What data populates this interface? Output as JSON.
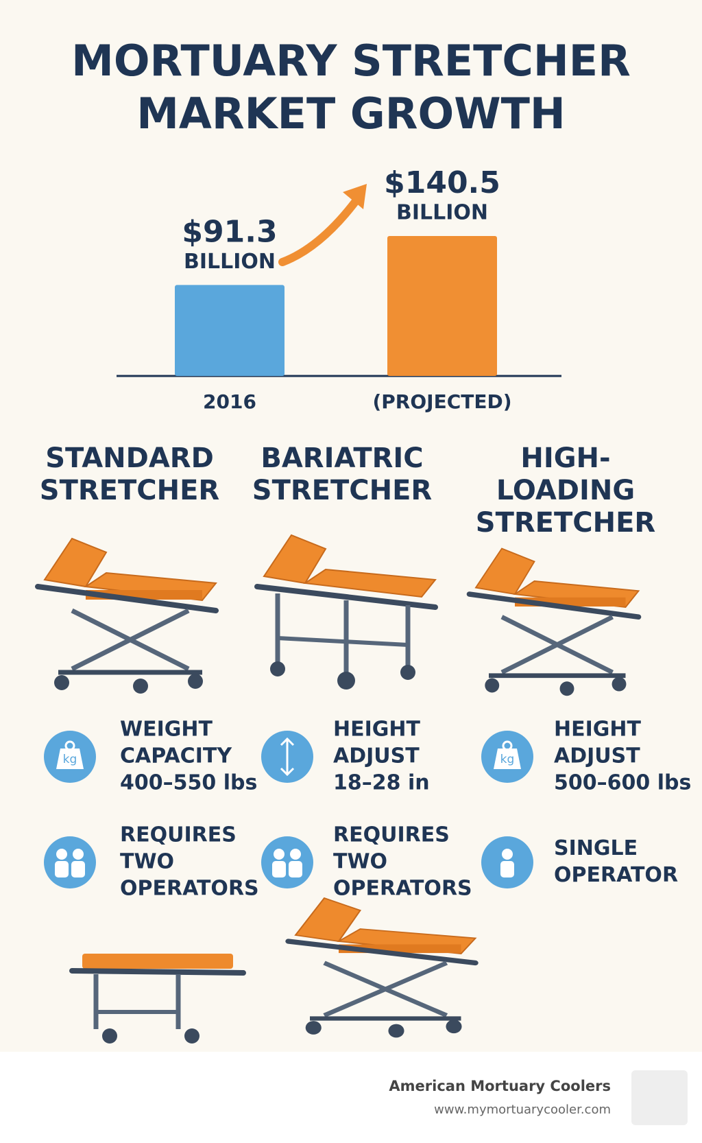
{
  "chart_data": {
    "type": "bar",
    "title_lines": [
      "MORTUARY STRETCHER",
      "MARKET GROWTH"
    ],
    "categories": [
      "2016",
      "(PROJECTED)"
    ],
    "values": [
      91.3,
      140.5
    ],
    "value_labels": [
      "$91.3",
      "$140.5"
    ],
    "unit_label": "BILLION",
    "colors": [
      "#5aa7dc",
      "#f08f33"
    ]
  },
  "stretchers": [
    {
      "name_lines": [
        "STANDARD",
        "STRETCHER"
      ],
      "features": [
        {
          "icon": "kg",
          "lines": [
            "WEIGHT",
            "CAPACITY",
            "400–550 lbs"
          ]
        },
        {
          "icon": "two-people",
          "lines": [
            "REQUIRES",
            "TWO",
            "OPERATORS"
          ]
        }
      ]
    },
    {
      "name_lines": [
        "BARIATRIC",
        "STRETCHER"
      ],
      "features": [
        {
          "icon": "arrows",
          "lines": [
            "HEIGHT",
            "ADJUST",
            "18–28 in"
          ]
        },
        {
          "icon": "two-people",
          "lines": [
            "REQUIRES",
            "TWO",
            "OPERATORS"
          ]
        }
      ]
    },
    {
      "name_lines": [
        "HIGH-",
        "LOADING",
        "STRETCHER"
      ],
      "features": [
        {
          "icon": "kg",
          "lines": [
            "HEIGHT",
            "ADJUST",
            "500–600 lbs"
          ]
        },
        {
          "icon": "one-person",
          "lines": [
            "SINGLE",
            "OPERATOR"
          ]
        }
      ]
    }
  ],
  "footer": {
    "company": "American Mortuary Coolers",
    "url": "www.mymortuarycooler.com"
  }
}
